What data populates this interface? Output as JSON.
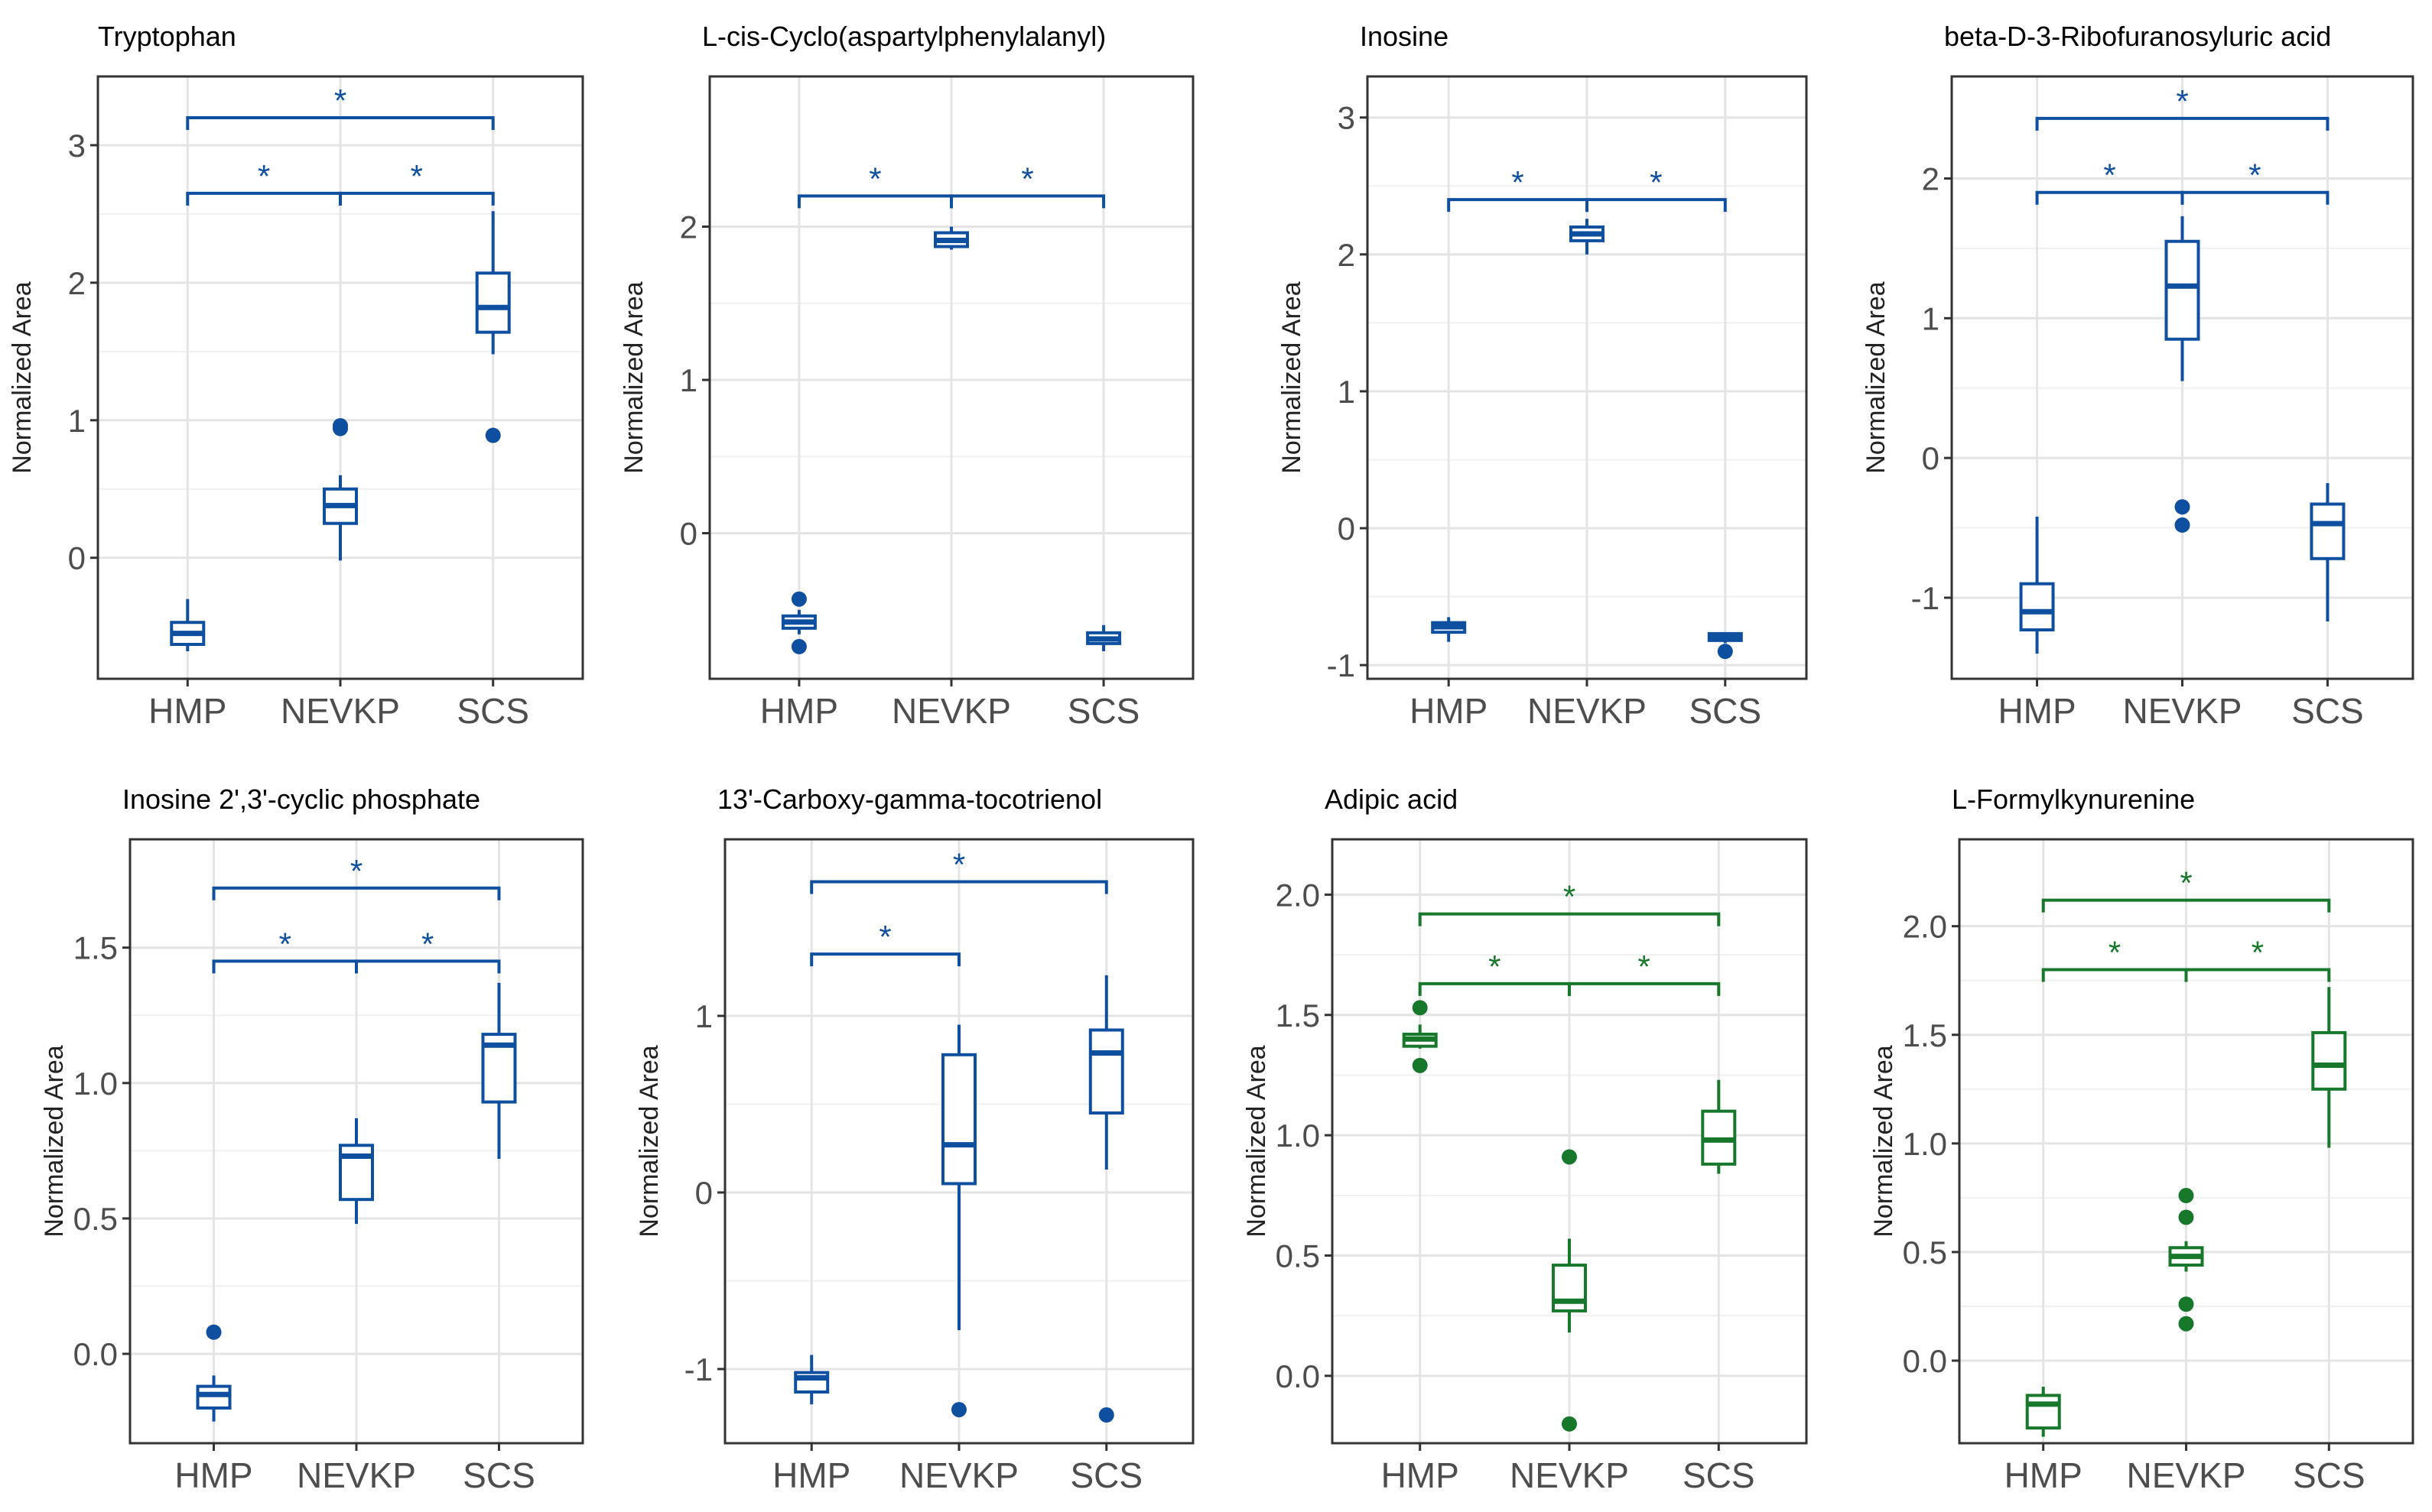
{
  "colors": {
    "blue": "#0F4FA0",
    "green": "#17782C"
  },
  "chart_data": [
    {
      "type": "box",
      "title": "Tryptophan",
      "ylabel": "Normalized Area",
      "categories": [
        "HMP",
        "NEVKP",
        "SCS"
      ],
      "ylim": [
        -0.88,
        3.5
      ],
      "yticks": [
        0,
        1,
        2,
        3
      ],
      "ytick_labels": [
        "0",
        "1",
        "2",
        "3"
      ],
      "color": "blue",
      "boxes": [
        {
          "group": "HMP",
          "whisker_low": -0.68,
          "q1": -0.63,
          "median": -0.55,
          "q3": -0.47,
          "whisker_high": -0.3,
          "outliers": []
        },
        {
          "group": "NEVKP",
          "whisker_low": -0.02,
          "q1": 0.25,
          "median": 0.38,
          "q3": 0.5,
          "whisker_high": 0.6,
          "outliers": [
            0.94,
            0.96
          ]
        },
        {
          "group": "SCS",
          "whisker_low": 1.48,
          "q1": 1.64,
          "median": 1.82,
          "q3": 2.07,
          "whisker_high": 2.52,
          "outliers": [
            0.89
          ]
        }
      ],
      "brackets": [
        {
          "from": "HMP",
          "to": "SCS",
          "y": 3.2,
          "label": "*"
        },
        {
          "from": "HMP",
          "to": "NEVKP",
          "y": 2.65,
          "label": "*"
        },
        {
          "from": "NEVKP",
          "to": "SCS",
          "y": 2.65,
          "label": "*"
        }
      ]
    },
    {
      "type": "box",
      "title": "L-cis-Cyclo(aspartylphenylalanyl)",
      "ylabel": "Normalized Area",
      "categories": [
        "HMP",
        "NEVKP",
        "SCS"
      ],
      "ylim": [
        -0.95,
        2.98
      ],
      "yticks": [
        0,
        1,
        2
      ],
      "ytick_labels": [
        "0",
        "1",
        "2"
      ],
      "color": "blue",
      "boxes": [
        {
          "group": "HMP",
          "whisker_low": -0.66,
          "q1": -0.62,
          "median": -0.58,
          "q3": -0.54,
          "whisker_high": -0.5,
          "outliers": [
            -0.43,
            -0.74
          ]
        },
        {
          "group": "NEVKP",
          "whisker_low": 1.85,
          "q1": 1.87,
          "median": 1.91,
          "q3": 1.96,
          "whisker_high": 2.0,
          "outliers": []
        },
        {
          "group": "SCS",
          "whisker_low": -0.77,
          "q1": -0.72,
          "median": -0.69,
          "q3": -0.65,
          "whisker_high": -0.6,
          "outliers": []
        }
      ],
      "brackets": [
        {
          "from": "HMP",
          "to": "NEVKP",
          "y": 2.2,
          "label": "*"
        },
        {
          "from": "NEVKP",
          "to": "SCS",
          "y": 2.2,
          "label": "*"
        }
      ]
    },
    {
      "type": "box",
      "title": "Inosine",
      "ylabel": "Normalized Area",
      "categories": [
        "HMP",
        "NEVKP",
        "SCS"
      ],
      "ylim": [
        -1.1,
        3.3
      ],
      "yticks": [
        -1,
        0,
        1,
        2,
        3
      ],
      "ytick_labels": [
        "-1",
        "0",
        "1",
        "2",
        "3"
      ],
      "color": "blue",
      "boxes": [
        {
          "group": "HMP",
          "whisker_low": -0.83,
          "q1": -0.76,
          "median": -0.72,
          "q3": -0.69,
          "whisker_high": -0.65,
          "outliers": []
        },
        {
          "group": "NEVKP",
          "whisker_low": 2.0,
          "q1": 2.1,
          "median": 2.15,
          "q3": 2.2,
          "whisker_high": 2.26,
          "outliers": []
        },
        {
          "group": "SCS",
          "whisker_low": -0.84,
          "q1": -0.82,
          "median": -0.79,
          "q3": -0.77,
          "whisker_high": -0.76,
          "outliers": [
            -0.9
          ]
        }
      ],
      "brackets": [
        {
          "from": "HMP",
          "to": "NEVKP",
          "y": 2.4,
          "label": "*"
        },
        {
          "from": "NEVKP",
          "to": "SCS",
          "y": 2.4,
          "label": "*"
        }
      ]
    },
    {
      "type": "box",
      "title": "beta-D-3-Ribofuranosyluric acid",
      "ylabel": "Normalized Area",
      "categories": [
        "HMP",
        "NEVKP",
        "SCS"
      ],
      "ylim": [
        -1.58,
        2.73
      ],
      "yticks": [
        -1,
        0,
        1,
        2
      ],
      "ytick_labels": [
        "-1",
        "0",
        "1",
        "2"
      ],
      "color": "blue",
      "boxes": [
        {
          "group": "HMP",
          "whisker_low": -1.4,
          "q1": -1.23,
          "median": -1.1,
          "q3": -0.9,
          "whisker_high": -0.42,
          "outliers": []
        },
        {
          "group": "NEVKP",
          "whisker_low": 0.55,
          "q1": 0.85,
          "median": 1.23,
          "q3": 1.55,
          "whisker_high": 1.73,
          "outliers": [
            -0.35,
            -0.48
          ]
        },
        {
          "group": "SCS",
          "whisker_low": -1.17,
          "q1": -0.72,
          "median": -0.47,
          "q3": -0.33,
          "whisker_high": -0.18,
          "outliers": []
        }
      ],
      "brackets": [
        {
          "from": "HMP",
          "to": "SCS",
          "y": 2.43,
          "label": "*"
        },
        {
          "from": "HMP",
          "to": "NEVKP",
          "y": 1.9,
          "label": "*"
        },
        {
          "from": "NEVKP",
          "to": "SCS",
          "y": 1.9,
          "label": "*"
        }
      ]
    },
    {
      "type": "box",
      "title": "Inosine 2',3'-cyclic phosphate",
      "ylabel": "Normalized Area",
      "categories": [
        "HMP",
        "NEVKP",
        "SCS"
      ],
      "ylim": [
        -0.33,
        1.9
      ],
      "yticks": [
        0.0,
        0.5,
        1.0,
        1.5
      ],
      "ytick_labels": [
        "0.0",
        "0.5",
        "1.0",
        "1.5"
      ],
      "color": "blue",
      "boxes": [
        {
          "group": "HMP",
          "whisker_low": -0.25,
          "q1": -0.2,
          "median": -0.15,
          "q3": -0.12,
          "whisker_high": -0.08,
          "outliers": [
            0.08
          ]
        },
        {
          "group": "NEVKP",
          "whisker_low": 0.48,
          "q1": 0.57,
          "median": 0.73,
          "q3": 0.77,
          "whisker_high": 0.87,
          "outliers": []
        },
        {
          "group": "SCS",
          "whisker_low": 0.72,
          "q1": 0.93,
          "median": 1.14,
          "q3": 1.18,
          "whisker_high": 1.37,
          "outliers": []
        }
      ],
      "brackets": [
        {
          "from": "HMP",
          "to": "SCS",
          "y": 1.72,
          "label": "*"
        },
        {
          "from": "HMP",
          "to": "NEVKP",
          "y": 1.45,
          "label": "*"
        },
        {
          "from": "NEVKP",
          "to": "SCS",
          "y": 1.45,
          "label": "*"
        }
      ]
    },
    {
      "type": "box",
      "title": "13'-Carboxy-gamma-tocotrienol",
      "ylabel": "Normalized Area",
      "categories": [
        "HMP",
        "NEVKP",
        "SCS"
      ],
      "ylim": [
        -1.42,
        2.0
      ],
      "yticks": [
        -1,
        0,
        1
      ],
      "ytick_labels": [
        "-1",
        "0",
        "1"
      ],
      "color": "blue",
      "boxes": [
        {
          "group": "HMP",
          "whisker_low": -1.2,
          "q1": -1.13,
          "median": -1.05,
          "q3": -1.02,
          "whisker_high": -0.92,
          "outliers": []
        },
        {
          "group": "NEVKP",
          "whisker_low": -0.78,
          "q1": 0.05,
          "median": 0.27,
          "q3": 0.78,
          "whisker_high": 0.95,
          "outliers": [
            -1.23
          ]
        },
        {
          "group": "SCS",
          "whisker_low": 0.13,
          "q1": 0.45,
          "median": 0.79,
          "q3": 0.92,
          "whisker_high": 1.23,
          "outliers": [
            -1.26
          ]
        }
      ],
      "brackets": [
        {
          "from": "HMP",
          "to": "SCS",
          "y": 1.76,
          "label": "*"
        },
        {
          "from": "HMP",
          "to": "NEVKP",
          "y": 1.35,
          "label": "*"
        }
      ]
    },
    {
      "type": "box",
      "title": "Adipic acid",
      "ylabel": "Normalized Area",
      "categories": [
        "HMP",
        "NEVKP",
        "SCS"
      ],
      "ylim": [
        -0.28,
        2.23
      ],
      "yticks": [
        0.0,
        0.5,
        1.0,
        1.5,
        2.0
      ],
      "ytick_labels": [
        "0.0",
        "0.5",
        "1.0",
        "1.5",
        "2.0"
      ],
      "color": "green",
      "boxes": [
        {
          "group": "HMP",
          "whisker_low": 1.36,
          "q1": 1.37,
          "median": 1.4,
          "q3": 1.42,
          "whisker_high": 1.46,
          "outliers": [
            1.53,
            1.29
          ]
        },
        {
          "group": "NEVKP",
          "whisker_low": 0.18,
          "q1": 0.27,
          "median": 0.31,
          "q3": 0.46,
          "whisker_high": 0.57,
          "outliers": [
            0.91,
            -0.2
          ]
        },
        {
          "group": "SCS",
          "whisker_low": 0.84,
          "q1": 0.88,
          "median": 0.98,
          "q3": 1.1,
          "whisker_high": 1.23,
          "outliers": []
        }
      ],
      "brackets": [
        {
          "from": "HMP",
          "to": "SCS",
          "y": 1.92,
          "label": "*"
        },
        {
          "from": "HMP",
          "to": "NEVKP",
          "y": 1.63,
          "label": "*"
        },
        {
          "from": "NEVKP",
          "to": "SCS",
          "y": 1.63,
          "label": "*"
        }
      ]
    },
    {
      "type": "box",
      "title": "L-Formylkynurenine",
      "ylabel": "Normalized Area",
      "categories": [
        "HMP",
        "NEVKP",
        "SCS"
      ],
      "ylim": [
        -0.38,
        2.4
      ],
      "yticks": [
        0.0,
        0.5,
        1.0,
        1.5,
        2.0
      ],
      "ytick_labels": [
        "0.0",
        "0.5",
        "1.0",
        "1.5",
        "2.0"
      ],
      "color": "green",
      "boxes": [
        {
          "group": "HMP",
          "whisker_low": -0.35,
          "q1": -0.31,
          "median": -0.2,
          "q3": -0.16,
          "whisker_high": -0.12,
          "outliers": []
        },
        {
          "group": "NEVKP",
          "whisker_low": 0.41,
          "q1": 0.44,
          "median": 0.48,
          "q3": 0.52,
          "whisker_high": 0.55,
          "outliers": [
            0.76,
            0.66,
            0.26,
            0.17
          ]
        },
        {
          "group": "SCS",
          "whisker_low": 0.98,
          "q1": 1.25,
          "median": 1.36,
          "q3": 1.51,
          "whisker_high": 1.72,
          "outliers": []
        }
      ],
      "brackets": [
        {
          "from": "HMP",
          "to": "SCS",
          "y": 2.12,
          "label": "*"
        },
        {
          "from": "HMP",
          "to": "NEVKP",
          "y": 1.8,
          "label": "*"
        },
        {
          "from": "NEVKP",
          "to": "SCS",
          "y": 1.8,
          "label": "*"
        }
      ]
    }
  ]
}
